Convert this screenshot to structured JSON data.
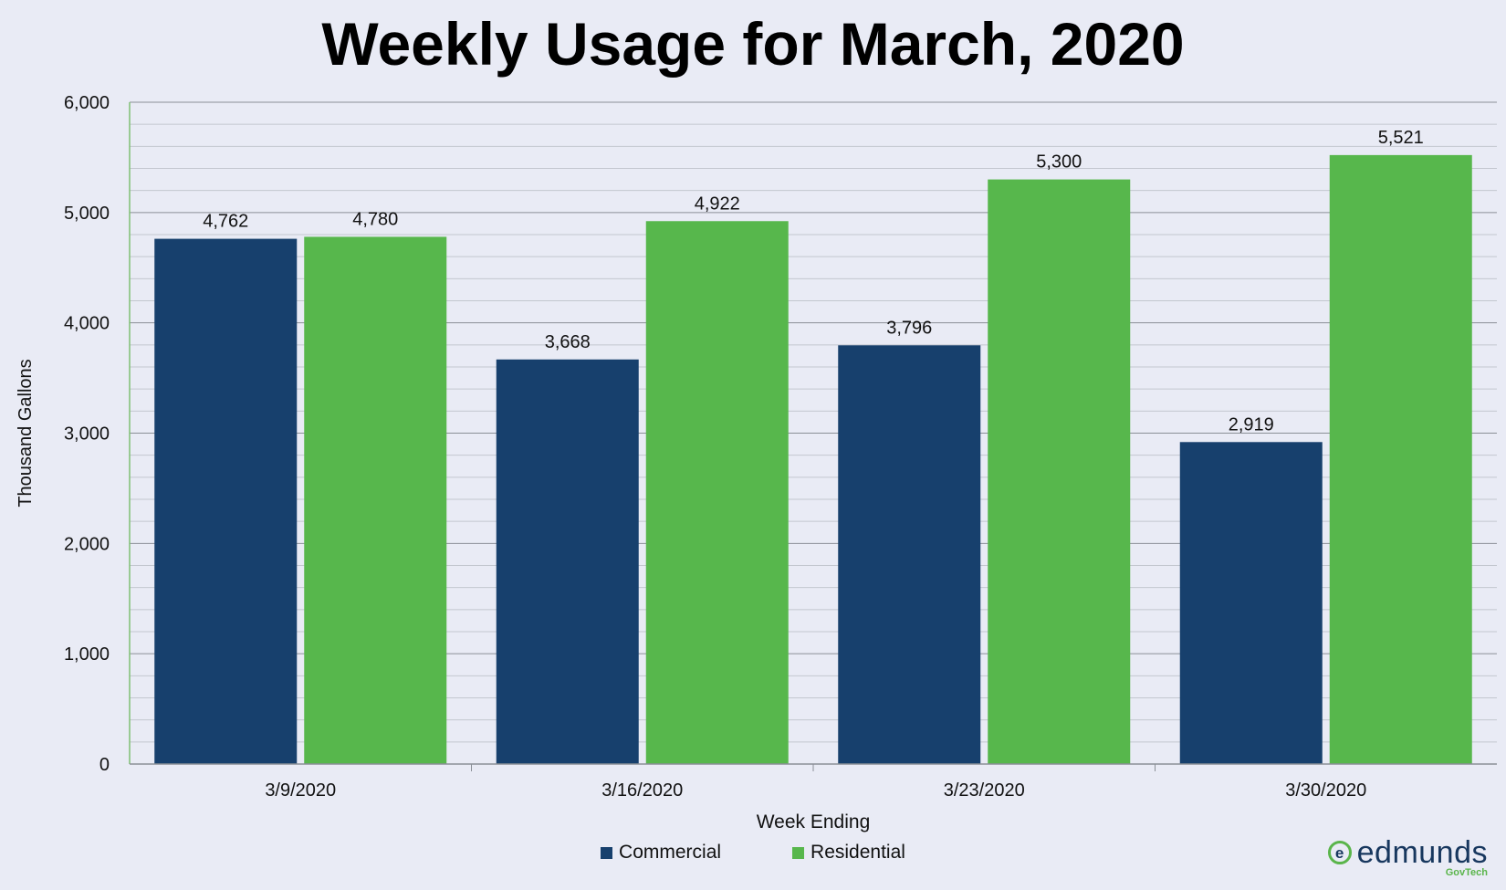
{
  "chart_data": {
    "type": "bar",
    "title": "Weekly Usage for March, 2020",
    "xlabel": "Week Ending",
    "ylabel": "Thousand Gallons",
    "categories": [
      "3/9/2020",
      "3/16/2020",
      "3/23/2020",
      "3/30/2020"
    ],
    "series": [
      {
        "name": "Commercial",
        "color": "#17406d",
        "values": [
          4762,
          3668,
          3796,
          2919
        ],
        "labels": [
          "4,762",
          "3,668",
          "3,796",
          "2,919"
        ]
      },
      {
        "name": "Residential",
        "color": "#57b74c",
        "values": [
          4780,
          4922,
          5300,
          5521
        ],
        "labels": [
          "4,780",
          "4,922",
          "5,300",
          "5,521"
        ]
      }
    ],
    "ylim": [
      0,
      6000
    ],
    "yticks": [
      0,
      1000,
      2000,
      3000,
      4000,
      5000,
      6000
    ],
    "ytick_labels": [
      "0",
      "1,000",
      "2,000",
      "3,000",
      "4,000",
      "5,000",
      "6,000"
    ],
    "grid": true,
    "legend_position": "bottom"
  },
  "logo": {
    "name": "edmunds",
    "sub": "GovTech",
    "mark": "e"
  }
}
